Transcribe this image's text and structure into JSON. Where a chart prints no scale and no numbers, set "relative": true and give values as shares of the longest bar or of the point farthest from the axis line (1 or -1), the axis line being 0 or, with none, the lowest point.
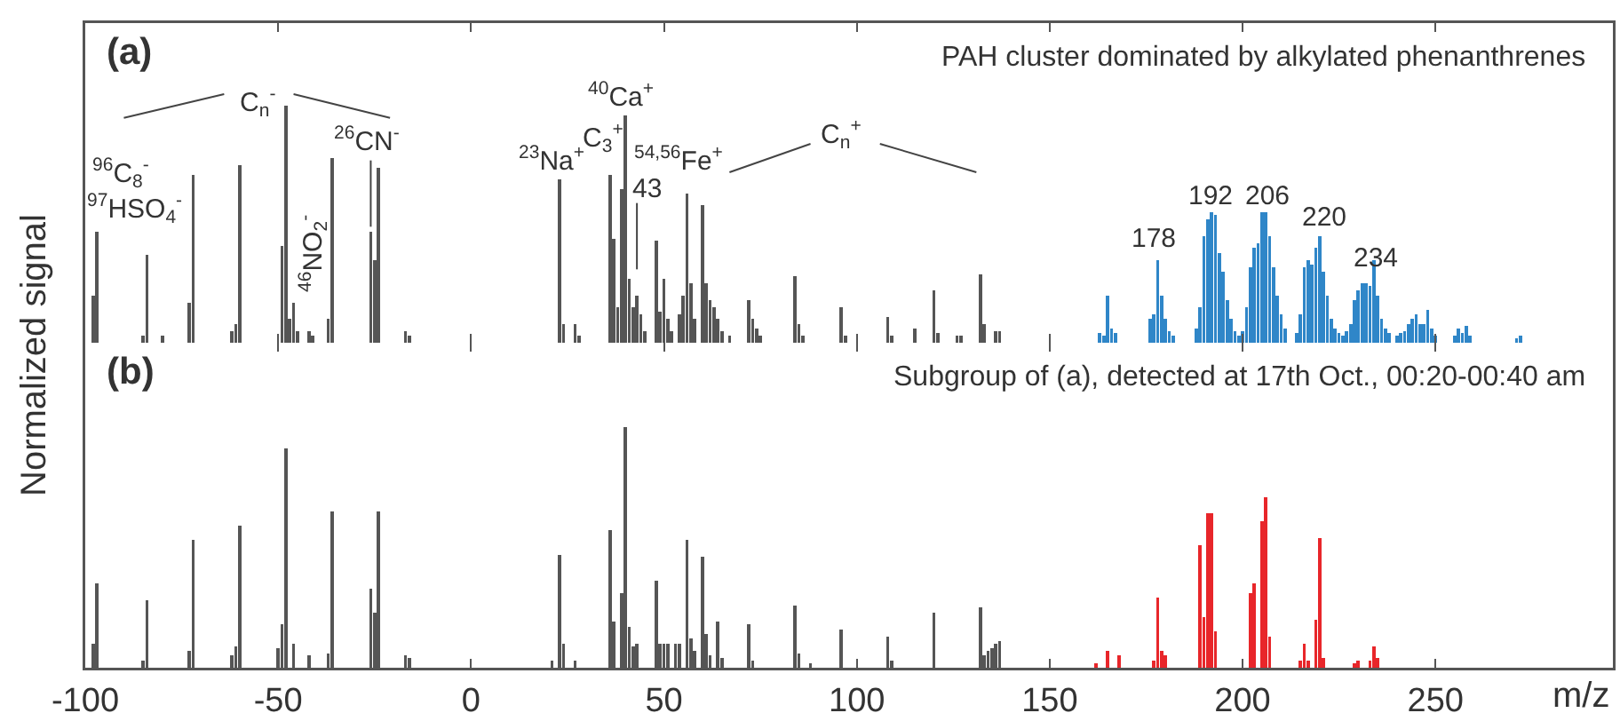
{
  "chart_data": [
    {
      "type": "bar",
      "title": "(a)",
      "ylabel": "Normalized signal",
      "relative": true,
      "xlim": [
        -100,
        296
      ],
      "xticks": [
        -100,
        -50,
        0,
        50,
        100,
        150,
        200,
        250
      ],
      "tick_labels": false,
      "series": [
        {
          "color": "#555555",
          "x": [
            -98,
            -97,
            -85,
            -84,
            -80,
            -73,
            -72,
            -62,
            -61,
            -60,
            -49,
            -48,
            -47,
            -46,
            -45,
            -42,
            -41,
            -37,
            -36,
            -26,
            -25,
            -24,
            -17,
            -16,
            23,
            24,
            27,
            28,
            36,
            37,
            38,
            39,
            40,
            41,
            42,
            43,
            44,
            45,
            48,
            49,
            50,
            51,
            52,
            54,
            55,
            56,
            57,
            58,
            60,
            61,
            62,
            63,
            64,
            65,
            67,
            72,
            73,
            74,
            75,
            84,
            85,
            86,
            96,
            97,
            108,
            109,
            115,
            120,
            121,
            126,
            127,
            132,
            133,
            136,
            137
          ],
          "values": [
            0.2,
            0.47,
            0.03,
            0.37,
            0.03,
            0.17,
            0.71,
            0.05,
            0.08,
            0.75,
            0.41,
            1,
            0.1,
            0.17,
            0.05,
            0.05,
            0.03,
            0.1,
            0.78,
            0.47,
            0.35,
            0.74,
            0.05,
            0.03,
            0.69,
            0.08,
            0.08,
            0.03,
            0.71,
            0.44,
            0.15,
            0.65,
            0.96,
            0.27,
            0.15,
            0.2,
            0.12,
            0.05,
            0.43,
            0.13,
            0.27,
            0.1,
            0.05,
            0.12,
            0.2,
            0.63,
            0.25,
            0.1,
            0.58,
            0.25,
            0.18,
            0.15,
            0.1,
            0.05,
            0.03,
            0.18,
            0.1,
            0.06,
            0.03,
            0.28,
            0.08,
            0.03,
            0.15,
            0.03,
            0.11,
            0.03,
            0.06,
            0.22,
            0.04,
            0.03,
            0.03,
            0.29,
            0.08,
            0.05,
            0.05
          ]
        },
        {
          "color": "#2f86c8",
          "x": [
            163,
            164,
            165,
            166,
            167,
            176,
            177,
            178,
            179,
            180,
            181,
            182,
            188,
            189,
            190,
            191,
            192,
            193,
            194,
            195,
            196,
            197,
            198,
            199,
            200,
            201,
            202,
            203,
            204,
            205,
            206,
            207,
            208,
            209,
            210,
            211,
            214,
            215,
            216,
            217,
            218,
            219,
            220,
            221,
            222,
            223,
            224,
            225,
            226,
            227,
            228,
            229,
            230,
            231,
            232,
            233,
            234,
            235,
            236,
            237,
            238,
            240,
            241,
            242,
            243,
            244,
            245,
            246,
            247,
            248,
            249,
            250,
            255,
            256,
            257,
            258,
            259,
            271,
            272
          ],
          "values": [
            0.04,
            0.03,
            0.2,
            0.06,
            0.04,
            0.1,
            0.12,
            0.35,
            0.2,
            0.1,
            0.05,
            0.03,
            0.06,
            0.15,
            0.45,
            0.52,
            0.55,
            0.54,
            0.38,
            0.3,
            0.18,
            0.1,
            0.05,
            0.03,
            0.05,
            0.15,
            0.32,
            0.4,
            0.42,
            0.55,
            0.55,
            0.45,
            0.32,
            0.2,
            0.12,
            0.06,
            0.04,
            0.12,
            0.32,
            0.35,
            0.33,
            0.4,
            0.45,
            0.3,
            0.2,
            0.1,
            0.06,
            0.04,
            0.03,
            0.05,
            0.08,
            0.18,
            0.22,
            0.25,
            0.25,
            0.24,
            0.35,
            0.2,
            0.1,
            0.06,
            0.04,
            0.03,
            0.04,
            0.05,
            0.08,
            0.1,
            0.12,
            0.08,
            0.08,
            0.14,
            0.06,
            0.03,
            0.03,
            0.06,
            0.04,
            0.07,
            0.03,
            0.02,
            0.03
          ]
        }
      ],
      "annotations": [
        "C$_{n}$$^{-}$",
        "$^{96}$C$_{8}$$^{-}$",
        "$^{97}$HSO$_{4}$$^{-}$",
        "$^{46}$NO$_{2}$$^{-}$",
        "$^{26}$CN$^{-}$",
        "$^{23}$Na$^{+}$",
        "C$_{3}$$^{+}$",
        "$^{40}$Ca$^{+}$",
        "$^{54,56}$Fe$^{+}$",
        "43",
        "C$_{n}$$^{+}$",
        "PAH cluster dominated by alkylated phenanthrenes",
        "178",
        "192",
        "206",
        "220",
        "234"
      ]
    },
    {
      "type": "bar",
      "title": "(b)",
      "xlabel": "m/z",
      "relative": true,
      "xlim": [
        -100,
        296
      ],
      "xticks": [
        -100,
        -50,
        0,
        50,
        100,
        150,
        200,
        250
      ],
      "tick_labels": "x",
      "series": [
        {
          "color": "#555555",
          "x": [
            -98,
            -97,
            -85,
            -84,
            -73,
            -72,
            -62,
            -61,
            -60,
            -50,
            -49,
            -48,
            -46,
            -42,
            -37,
            -36,
            -26,
            -25,
            -24,
            -17,
            -16,
            21,
            23,
            24,
            27,
            36,
            37,
            39,
            40,
            41,
            42,
            43,
            48,
            49,
            50,
            51,
            53,
            54,
            56,
            57,
            58,
            60,
            61,
            62,
            64,
            65,
            72,
            73,
            84,
            85,
            88,
            96,
            108,
            109,
            120,
            132,
            133,
            134,
            135,
            136,
            137
          ],
          "values": [
            0.1,
            0.35,
            0.03,
            0.28,
            0.07,
            0.53,
            0.05,
            0.09,
            0.59,
            0.08,
            0.18,
            0.91,
            0.1,
            0.05,
            0.06,
            0.65,
            0.33,
            0.23,
            0.65,
            0.05,
            0.04,
            0.03,
            0.47,
            0.1,
            0.03,
            0.57,
            0.19,
            0.31,
            1,
            0.17,
            0.09,
            0.1,
            0.36,
            0.1,
            0.1,
            0.1,
            0.1,
            0.1,
            0.53,
            0.12,
            0.07,
            0.46,
            0.14,
            0.05,
            0.19,
            0.04,
            0.18,
            0.03,
            0.26,
            0.06,
            0.02,
            0.16,
            0.13,
            0.03,
            0.23,
            0.25,
            0.05,
            0.07,
            0.08,
            0.1,
            0.11
          ]
        },
        {
          "color": "#e8262a",
          "x": [
            162,
            165,
            168,
            177,
            178,
            179,
            180,
            189,
            190,
            191,
            192,
            193,
            202,
            203,
            205,
            206,
            207,
            215,
            216,
            217,
            219,
            220,
            221,
            229,
            230,
            233,
            234,
            235
          ],
          "values": [
            0.02,
            0.07,
            0.05,
            0.03,
            0.29,
            0.07,
            0.05,
            0.51,
            0.21,
            0.64,
            0.64,
            0.15,
            0.31,
            0.35,
            0.61,
            0.71,
            0.13,
            0.03,
            0.1,
            0.03,
            0.2,
            0.54,
            0.04,
            0.02,
            0.03,
            0.03,
            0.09,
            0.04
          ]
        }
      ],
      "annotations": [
        "Subgroup of (a), detected at 17th Oct., 00:20-00:40 am"
      ]
    }
  ]
}
